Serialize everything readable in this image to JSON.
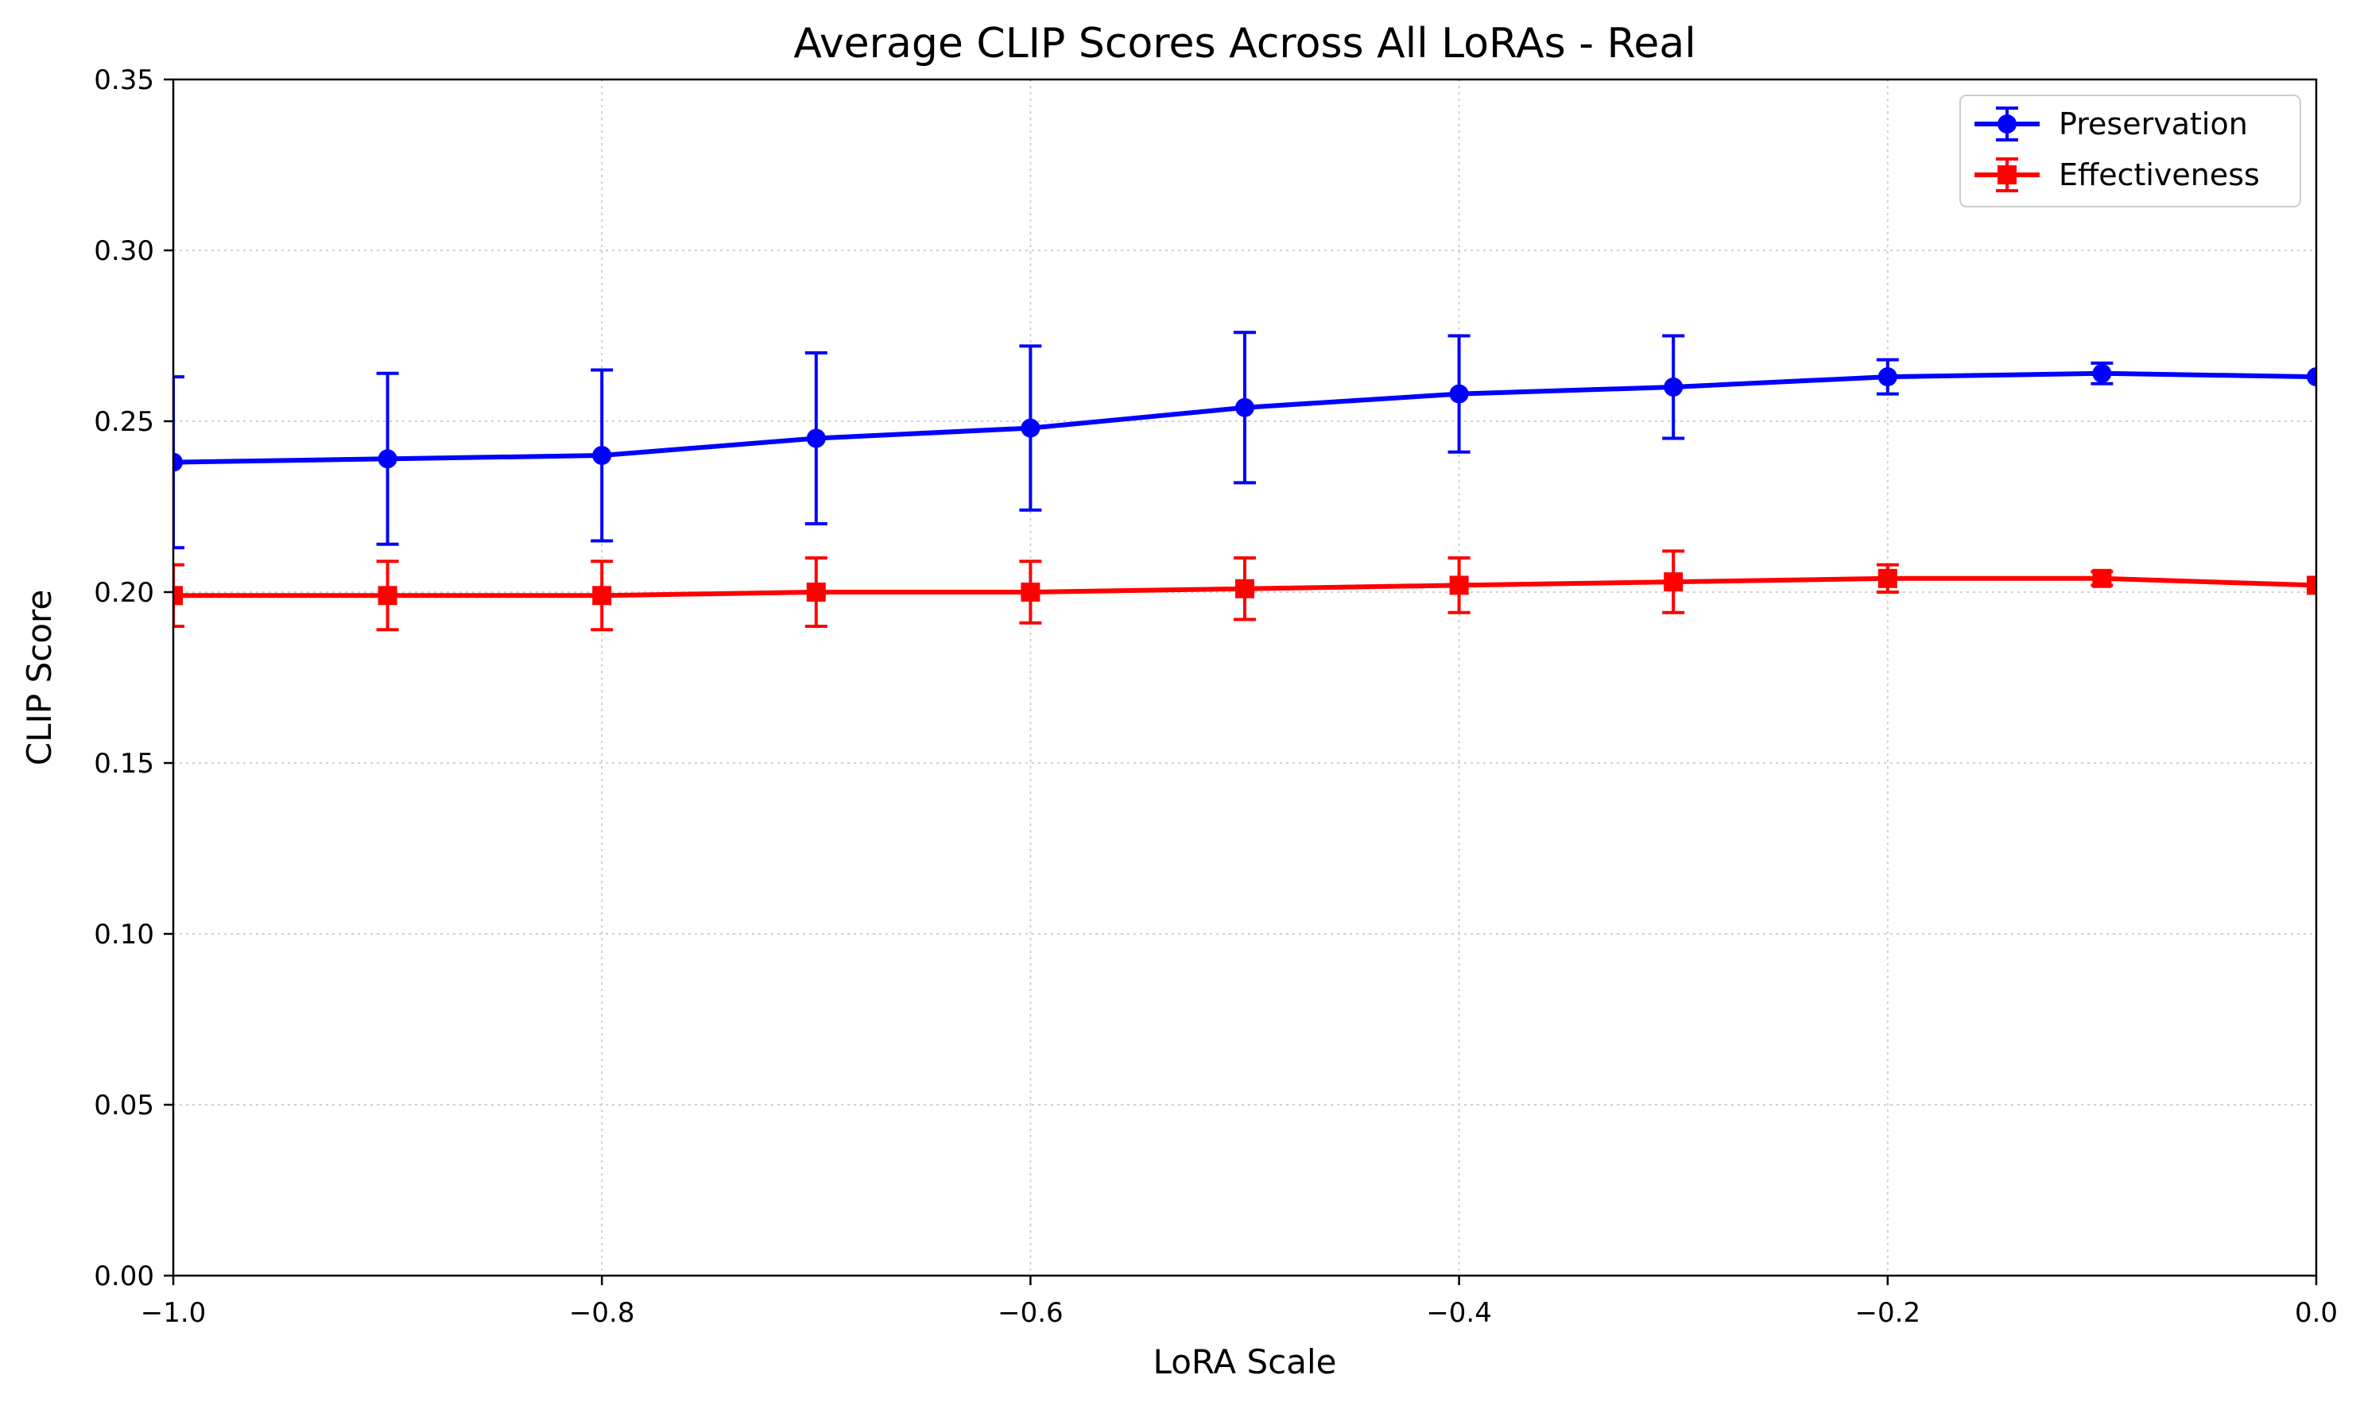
{
  "chart_data": {
    "type": "line",
    "title": "Average CLIP Scores Across All LoRAs - Real",
    "xlabel": "LoRA Scale",
    "ylabel": "CLIP Score",
    "xlim": [
      -1.0,
      0.0
    ],
    "ylim": [
      0.0,
      0.35
    ],
    "xticks": [
      -1.0,
      -0.8,
      -0.6,
      -0.4,
      -0.2,
      0.0
    ],
    "xtick_labels": [
      "−1.0",
      "−0.8",
      "−0.6",
      "−0.4",
      "−0.2",
      "0.0"
    ],
    "yticks": [
      0.0,
      0.05,
      0.1,
      0.15,
      0.2,
      0.25,
      0.3,
      0.35
    ],
    "ytick_labels": [
      "0.00",
      "0.05",
      "0.10",
      "0.15",
      "0.20",
      "0.25",
      "0.30",
      "0.35"
    ],
    "grid": true,
    "legend_position": "top-right",
    "x": [
      -1.0,
      -0.9,
      -0.8,
      -0.7,
      -0.6,
      -0.5,
      -0.4,
      -0.3,
      -0.2,
      -0.1,
      0.0
    ],
    "series": [
      {
        "name": "Preservation",
        "color": "#0000ff",
        "marker": "circle",
        "values": [
          0.238,
          0.239,
          0.24,
          0.245,
          0.248,
          0.254,
          0.258,
          0.26,
          0.263,
          0.264,
          0.263
        ],
        "error": [
          0.025,
          0.025,
          0.025,
          0.025,
          0.024,
          0.022,
          0.017,
          0.015,
          0.005,
          0.003,
          0.0
        ]
      },
      {
        "name": "Effectiveness",
        "color": "#ff0000",
        "marker": "square",
        "values": [
          0.199,
          0.199,
          0.199,
          0.2,
          0.2,
          0.201,
          0.202,
          0.203,
          0.204,
          0.204,
          0.202
        ],
        "error": [
          0.009,
          0.01,
          0.01,
          0.01,
          0.009,
          0.009,
          0.008,
          0.009,
          0.004,
          0.002,
          0.0
        ]
      }
    ]
  }
}
